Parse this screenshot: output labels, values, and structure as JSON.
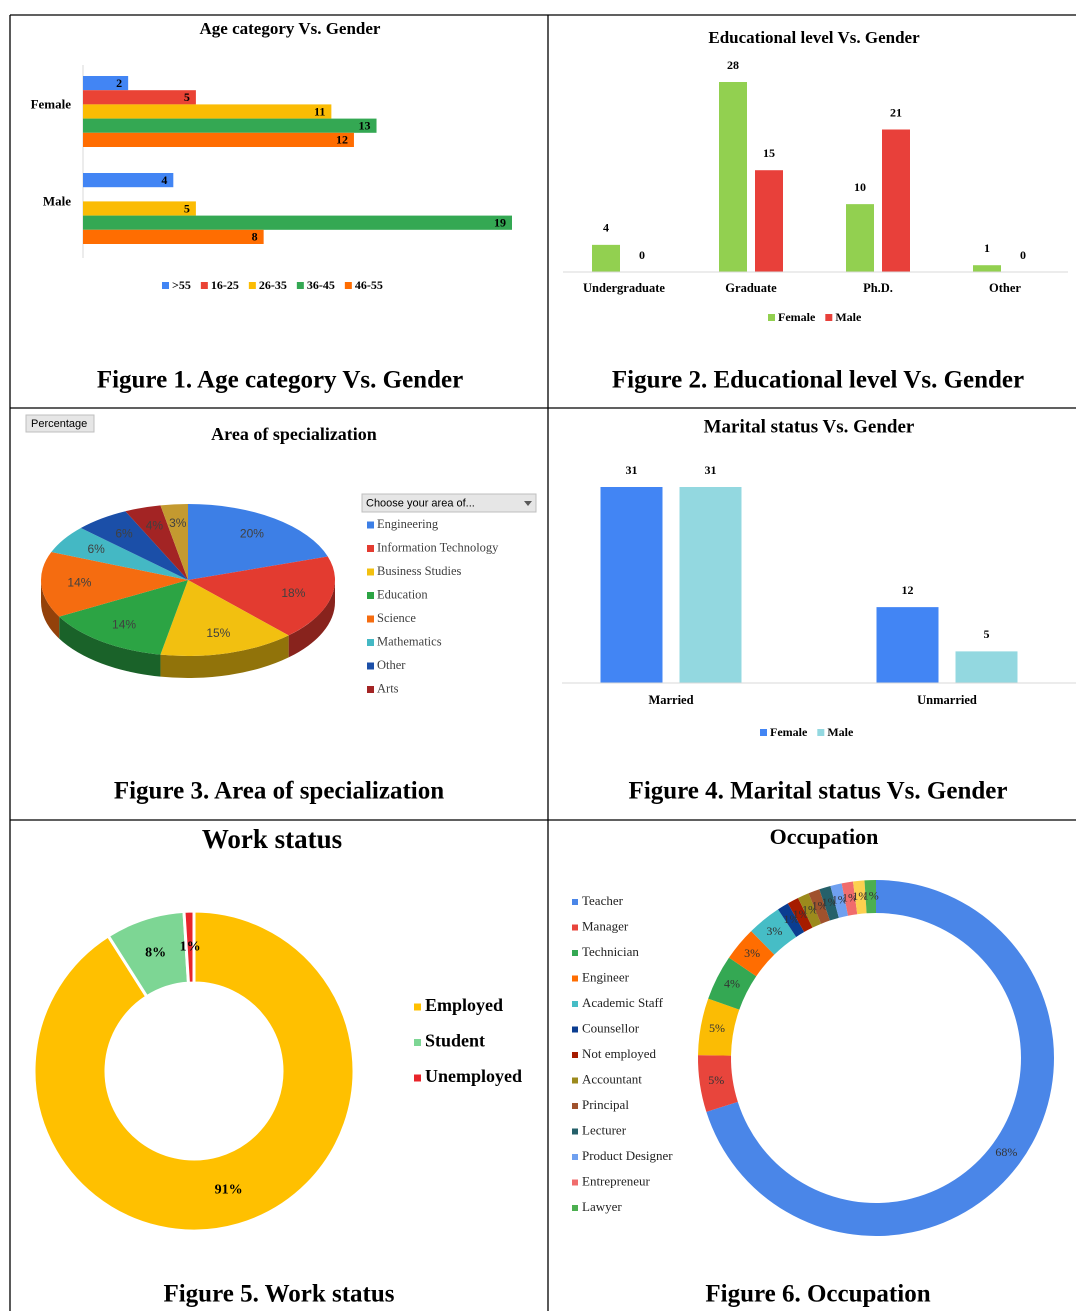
{
  "chart_data": [
    {
      "type": "hbar",
      "title": "Age category Vs. Gender",
      "caption": "Figure 1. Age category Vs. Gender",
      "categories": [
        "Female",
        "Male"
      ],
      "series": [
        {
          "name": ">55",
          "color": "#4285f4",
          "values": [
            2,
            4
          ]
        },
        {
          "name": "16-25",
          "color": "#ea4335",
          "values": [
            5,
            null
          ]
        },
        {
          "name": "26-35",
          "color": "#fbbc04",
          "values": [
            11,
            5
          ]
        },
        {
          "name": "36-45",
          "color": "#34a853",
          "values": [
            13,
            19
          ]
        },
        {
          "name": "46-55",
          "color": "#ff6d01",
          "values": [
            12,
            8
          ]
        }
      ]
    },
    {
      "type": "bar",
      "title": "Educational level Vs. Gender",
      "caption": "Figure 2. Educational level Vs. Gender",
      "categories": [
        "Undergraduate",
        "Graduate",
        "Ph.D.",
        "Other"
      ],
      "series": [
        {
          "name": "Female",
          "color": "#92d050",
          "values": [
            4,
            28,
            10,
            1
          ]
        },
        {
          "name": "Male",
          "color": "#e8403a",
          "values": [
            0,
            15,
            21,
            0
          ]
        }
      ]
    },
    {
      "type": "pie3d",
      "title": "Area of specialization",
      "caption": "Figure 3. Area of specialization",
      "button": "Percentage",
      "legend_title": "Choose your area of...",
      "categories": [
        "Engineering",
        "Information Technology",
        "Business Studies",
        "Education",
        "Science",
        "Mathematics",
        "Other",
        "Arts",
        null
      ],
      "values": [
        20,
        18,
        15,
        14,
        14,
        6,
        6,
        4,
        3
      ],
      "value_labels": [
        "20%",
        "18%",
        "15%",
        "14%",
        "14%",
        "6%",
        "6%",
        "4%",
        "3%"
      ],
      "colors": [
        "#3d7fe6",
        "#e33b30",
        "#f2c010",
        "#2ca444",
        "#f56c10",
        "#44b8c4",
        "#1b4fa8",
        "#a32424",
        "#c49a30"
      ]
    },
    {
      "type": "bar",
      "title": "Marital status Vs. Gender",
      "caption": "Figure 4. Marital status Vs. Gender",
      "categories": [
        "Married",
        "Unmarried"
      ],
      "series": [
        {
          "name": "Female",
          "color": "#4285f4",
          "values": [
            31,
            12
          ]
        },
        {
          "name": "Male",
          "color": "#93d8e0",
          "values": [
            31,
            5
          ]
        }
      ]
    },
    {
      "type": "donut",
      "title": "Work status",
      "caption": "Figure 5. Work status",
      "categories": [
        "Employed",
        "Student",
        "Unemployed"
      ],
      "values": [
        91,
        8,
        1
      ],
      "value_labels": [
        "91%",
        "8%",
        "1%"
      ],
      "colors": [
        "#ffc000",
        "#7dd694",
        "#e8242a"
      ]
    },
    {
      "type": "donut",
      "title": "Occupation",
      "caption": "Figure 6. Occupation",
      "categories": [
        "Teacher",
        "Manager",
        null,
        "Technician",
        "Engineer",
        "Academic Staff",
        "Counsellor",
        "Not employed",
        "Accountant",
        "Principal",
        "Lecturer",
        "Product Designer",
        "Entrepreneur",
        null,
        "Lawyer"
      ],
      "values": [
        68,
        5,
        5,
        4,
        3,
        3,
        1,
        1,
        1,
        1,
        1,
        1,
        1,
        1,
        1
      ],
      "value_labels": [
        "68%",
        "5%",
        "5%",
        "4%",
        "3%",
        "3%",
        "1%",
        "1%",
        "1%",
        "1%",
        "1%",
        "1%",
        "1%",
        "1%",
        "1%"
      ],
      "colors": [
        "#4a86e8",
        "#e8453c",
        "#fbbc04",
        "#34a853",
        "#ff6d01",
        "#46bdc6",
        "#0b3d91",
        "#a61c00",
        "#9c8a1c",
        "#a0522d",
        "#25606a",
        "#6fa0f0",
        "#f06c6c",
        "#fcd04f",
        "#4caf50"
      ]
    }
  ]
}
